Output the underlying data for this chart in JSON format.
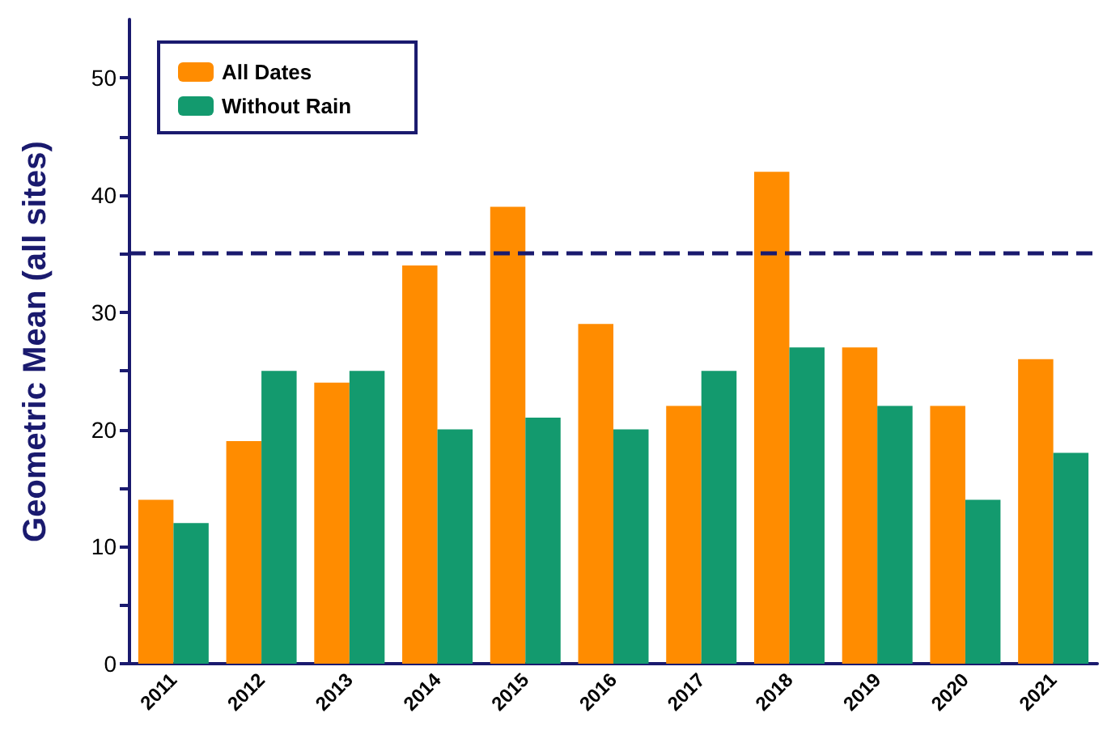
{
  "chart_data": {
    "type": "bar",
    "ylabel": "Geometric Mean (all sites)",
    "categories": [
      "2011",
      "2012",
      "2013",
      "2014",
      "2015",
      "2016",
      "2017",
      "2018",
      "2019",
      "2020",
      "2021"
    ],
    "series": [
      {
        "name": "All Dates",
        "color": "#ff8c00",
        "values": [
          14,
          19,
          24,
          34,
          39,
          29,
          22,
          42,
          27,
          22,
          26
        ]
      },
      {
        "name": "Without Rain",
        "color": "#139a6e",
        "values": [
          12,
          25,
          25,
          20,
          21,
          20,
          25,
          27,
          22,
          14,
          18
        ]
      }
    ],
    "ylim": [
      0,
      55
    ],
    "yticks": [
      0,
      {
        "value": 5,
        "label": null
      },
      10,
      {
        "value": 15,
        "label": null
      },
      20,
      {
        "value": 25,
        "label": null
      },
      30,
      {
        "value": 35,
        "label": null
      },
      40,
      {
        "value": 45,
        "label": null
      },
      50
    ],
    "ref_lines": [
      {
        "axis": "y",
        "value": 35,
        "color": "#1a1a6e",
        "line_style": "dashed"
      }
    ],
    "grid": false,
    "legend": "top left"
  }
}
